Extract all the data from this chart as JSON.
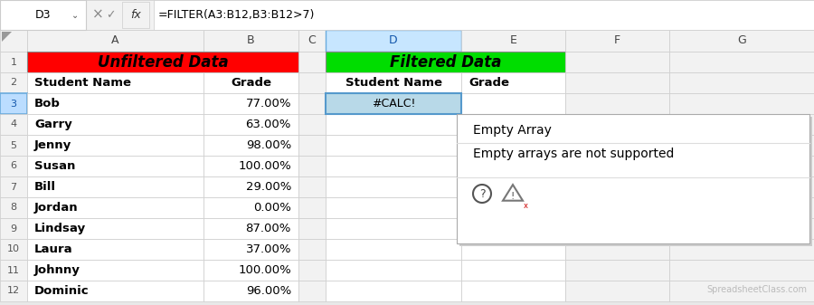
{
  "formula_bar_cell": "D3",
  "formula_bar_formula": "=FILTER(A3:B12,B3:B12>7)",
  "col_headers": [
    "A",
    "B",
    "C",
    "D",
    "E",
    "F",
    "G"
  ],
  "unfiltered_header": "Unfiltered Data",
  "unfiltered_header_bg": "#FF0000",
  "unfiltered_header_fg": "#000000",
  "filtered_header": "Filtered Data",
  "filtered_header_bg": "#00DD00",
  "filtered_header_fg": "#000000",
  "students": [
    "Bob",
    "Garry",
    "Jenny",
    "Susan",
    "Bill",
    "Jordan",
    "Lindsay",
    "Laura",
    "Johnny",
    "Dominic"
  ],
  "grades": [
    "77.00%",
    "63.00%",
    "98.00%",
    "100.00%",
    "29.00%",
    "0.00%",
    "87.00%",
    "37.00%",
    "100.00%",
    "96.00%"
  ],
  "calc_error": "#CALC!",
  "calc_error_bg": "#B8D9E8",
  "tooltip_title": "Empty Array",
  "tooltip_body": "Empty arrays are not supported",
  "watermark": "SpreadsheetClass.com",
  "bg_color": "#E8E8E8",
  "grid_color": "#C0C0C0",
  "row_header_bg": "#F2F2F2",
  "selected_col_bg": "#C7E6FF",
  "selected_row_bg": "#BBDDFF",
  "tooltip_bg": "#FFFFFF",
  "tooltip_border": "#AAAAAA"
}
